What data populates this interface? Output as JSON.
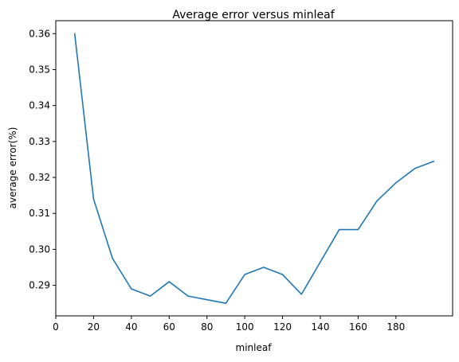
{
  "chart_data": {
    "type": "line",
    "title": "Average error versus minleaf",
    "xlabel": "minleaf",
    "ylabel": "average error(%)",
    "xlim": [
      0,
      210
    ],
    "ylim": [
      0.2815,
      0.3636
    ],
    "xticks": [
      0,
      20,
      40,
      60,
      80,
      100,
      120,
      140,
      160,
      180
    ],
    "xtick_labels": [
      "0",
      "20",
      "40",
      "60",
      "80",
      "100",
      "120",
      "140",
      "160",
      "180"
    ],
    "yticks": [
      0.29,
      0.3,
      0.31,
      0.32,
      0.33,
      0.34,
      0.35,
      0.36
    ],
    "ytick_labels": [
      "0.29",
      "0.30",
      "0.31",
      "0.32",
      "0.33",
      "0.34",
      "0.35",
      "0.36"
    ],
    "grid": false,
    "series": [
      {
        "color": "#1f77b4",
        "x": [
          10,
          20,
          30,
          40,
          50,
          60,
          70,
          80,
          90,
          100,
          110,
          120,
          130,
          140,
          150,
          160,
          170,
          180,
          190,
          200
        ],
        "y": [
          0.36,
          0.314,
          0.2975,
          0.289,
          0.287,
          0.291,
          0.287,
          0.286,
          0.285,
          0.293,
          0.295,
          0.293,
          0.2875,
          0.2965,
          0.3055,
          0.3055,
          0.3135,
          0.3185,
          0.3225,
          0.3245
        ]
      }
    ]
  }
}
